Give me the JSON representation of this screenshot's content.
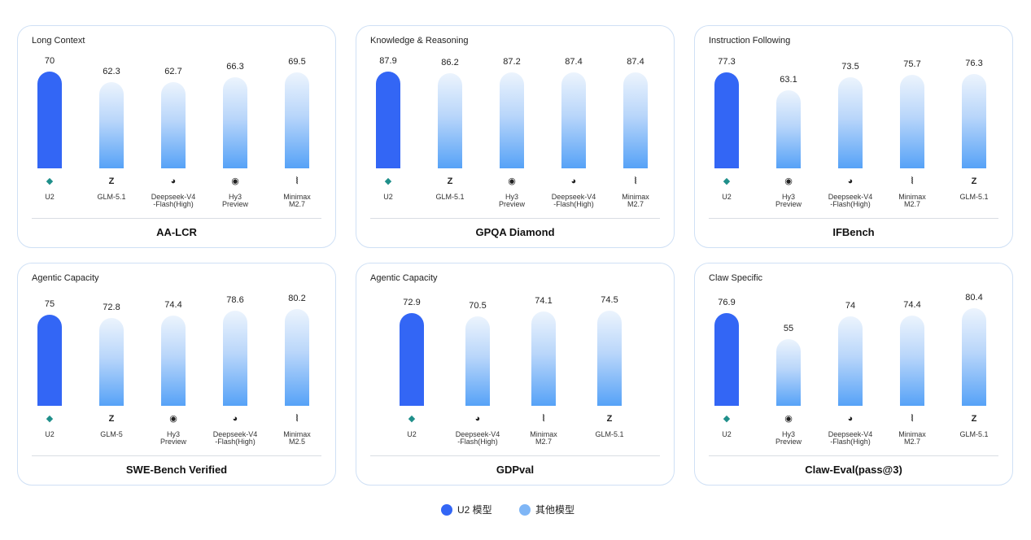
{
  "colors": {
    "primary": "#3366f5",
    "other": "#7fb6f6"
  },
  "legend": {
    "primary_label": "U2 模型",
    "other_label": "其他模型"
  },
  "chart_data": [
    {
      "type": "bar",
      "category": "Long Context",
      "benchmark": "AA-LCR",
      "ylim": [
        0,
        72
      ],
      "categories": [
        "U2",
        "GLM-5.1",
        "Deepseek-V4\n-Flash(High)",
        "Hy3\nPreview",
        "Minimax\nM2.7"
      ],
      "icons": [
        "u2-icon",
        "glm-icon",
        "deepseek-icon",
        "hy3-icon",
        "minimax-icon"
      ],
      "values": [
        70,
        62.3,
        62.7,
        66.3,
        69.5
      ],
      "highlight": 0
    },
    {
      "type": "bar",
      "category": "Knowledge & Reasoning",
      "benchmark": "GPQA Diamond",
      "ylim": [
        0,
        90
      ],
      "categories": [
        "U2",
        "GLM-5.1",
        "Hy3\nPreview",
        "Deepseek-V4\n-Flash(High)",
        "Minimax\nM2.7"
      ],
      "icons": [
        "u2-icon",
        "glm-icon",
        "hy3-icon",
        "deepseek-icon",
        "minimax-icon"
      ],
      "values": [
        87.9,
        86.2,
        87.2,
        87.4,
        87.4
      ],
      "highlight": 0
    },
    {
      "type": "bar",
      "category": "Instruction Following",
      "benchmark": "IFBench",
      "ylim": [
        0,
        80
      ],
      "categories": [
        "U2",
        "Hy3\nPreview",
        "Deepseek-V4\n-Flash(High)",
        "Minimax\nM2.7",
        "GLM-5.1"
      ],
      "icons": [
        "u2-icon",
        "hy3-icon",
        "deepseek-icon",
        "minimax-icon",
        "glm-icon"
      ],
      "values": [
        77.3,
        63.1,
        73.5,
        75.7,
        76.3
      ],
      "highlight": 0
    },
    {
      "type": "bar",
      "category": "Agentic Capacity",
      "benchmark": "SWE-Bench Verified",
      "ylim": [
        0,
        82
      ],
      "categories": [
        "U2",
        "GLM-5",
        "Hy3\nPreview",
        "Deepseek-V4\n-Flash(High)",
        "Minimax\nM2.5"
      ],
      "icons": [
        "u2-icon",
        "glm-icon",
        "hy3-icon",
        "deepseek-icon",
        "minimax-icon"
      ],
      "values": [
        75,
        72.8,
        74.4,
        78.6,
        80.2
      ],
      "highlight": 0
    },
    {
      "type": "bar",
      "category": "Agentic Capacity",
      "benchmark": "GDPval",
      "ylim": [
        0,
        78
      ],
      "categories": [
        "U2",
        "Deepseek-V4\n-Flash(High)",
        "Minimax\nM2.7",
        "GLM-5.1"
      ],
      "icons": [
        "u2-icon",
        "deepseek-icon",
        "minimax-icon",
        "glm-icon"
      ],
      "values": [
        72.9,
        70.5,
        74.1,
        74.5
      ],
      "highlight": 0
    },
    {
      "type": "bar",
      "category": "Claw Specific",
      "benchmark": "Claw-Eval(pass@3)",
      "ylim": [
        0,
        82
      ],
      "categories": [
        "U2",
        "Hy3\nPreview",
        "Deepseek-V4\n-Flash(High)",
        "Minimax\nM2.7",
        "GLM-5.1"
      ],
      "icons": [
        "u2-icon",
        "hy3-icon",
        "deepseek-icon",
        "minimax-icon",
        "glm-icon"
      ],
      "values": [
        76.9,
        55,
        74,
        74.4,
        80.4
      ],
      "highlight": 0
    }
  ]
}
